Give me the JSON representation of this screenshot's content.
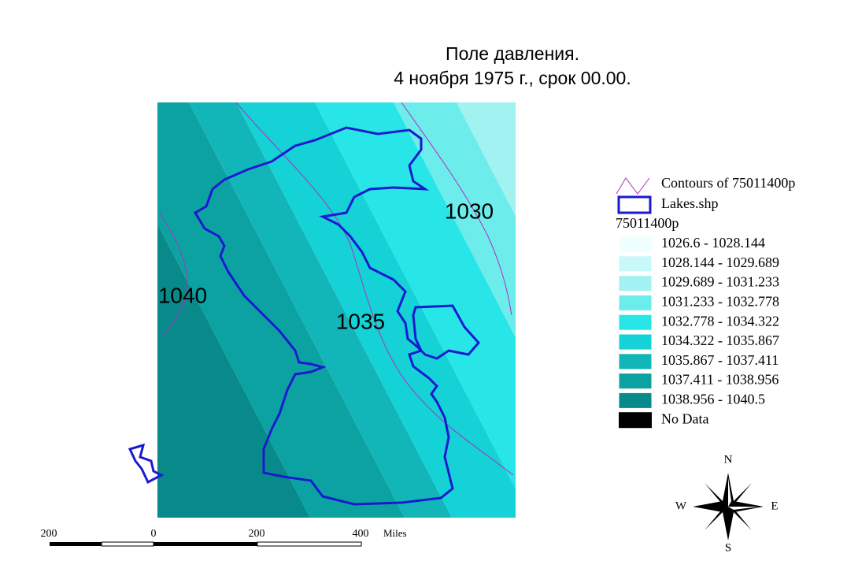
{
  "title": [
    "Поле давления.",
    "4 ноября 1975 г., срок 00.00."
  ],
  "contour_labels": [
    "1040",
    "1035",
    "1030"
  ],
  "legend": {
    "contours": "Contours of 75011400p",
    "contour_color": "#b030c0",
    "lakes": "Lakes.shp",
    "lake_color": "#1a1ad0",
    "layer": "75011400p",
    "classes": [
      {
        "label": "1026.6 - 1028.144",
        "color": "#effefe"
      },
      {
        "label": "1028.144 - 1029.689",
        "color": "#c9f8f8"
      },
      {
        "label": "1029.689 - 1031.233",
        "color": "#a2f2f2"
      },
      {
        "label": "1031.233 - 1032.778",
        "color": "#6decec"
      },
      {
        "label": "1032.778 - 1034.322",
        "color": "#28e6e8"
      },
      {
        "label": "1034.322 - 1035.867",
        "color": "#14d2d6"
      },
      {
        "label": "1035.867 - 1037.411",
        "color": "#12b6b8"
      },
      {
        "label": "1037.411 - 1038.956",
        "color": "#0ca2a2"
      },
      {
        "label": "1038.956 - 1040.5",
        "color": "#098a8a"
      }
    ],
    "no_data": "No Data",
    "no_data_color": "#000000"
  },
  "scale_bar": {
    "labels": [
      "200",
      "0",
      "200",
      "400"
    ],
    "unit": "Miles"
  },
  "compass": {
    "n": "N",
    "e": "E",
    "s": "S",
    "w": "W"
  }
}
